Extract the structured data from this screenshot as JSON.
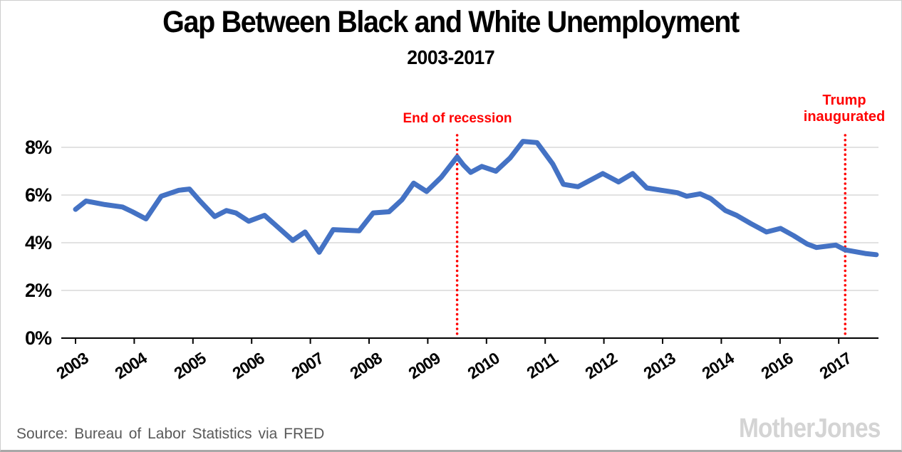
{
  "title": "Gap Between Black and White Unemployment",
  "subtitle": "2003-2017",
  "source_line": "Source: Bureau of Labor Statistics via FRED",
  "logo_text": "MotherJones",
  "colors": {
    "line": "#4472C4",
    "annotation_red": "#FF0000",
    "gridline": "#D9D9D9",
    "axis": "#000000",
    "source_text": "#595959",
    "logo_gray": "#D4D4D4"
  },
  "chart_data": {
    "type": "line",
    "title": "Gap Between Black and White Unemployment",
    "subtitle": "2003-2017",
    "grid": "horizontal only",
    "legend": "none",
    "ylim": [
      0,
      8.6
    ],
    "y_tick_labels": [
      "0%",
      "2%",
      "4%",
      "6%",
      "8%"
    ],
    "y_ticks": [
      0,
      2,
      4,
      6,
      8
    ],
    "x_tick_labels": [
      "2003",
      "2004",
      "2005",
      "2006",
      "2007",
      "2008",
      "2009",
      "2010",
      "2011",
      "2012",
      "2013",
      "2014",
      "2016",
      "2017"
    ],
    "x_axis_note": "evenly spaced year ticks; 2015 label is skipped on the original chart",
    "annotations": [
      {
        "label": "End of recession",
        "x": 2009.5
      },
      {
        "label": "Trump inaugurated",
        "x": 2017.11
      }
    ],
    "series": [
      {
        "name": "Black-white unemployment gap (percentage points)",
        "points": [
          [
            2003.0,
            5.4
          ],
          [
            2003.18,
            5.75
          ],
          [
            2003.5,
            5.6
          ],
          [
            2003.8,
            5.5
          ],
          [
            2003.97,
            5.3
          ],
          [
            2004.2,
            5.0
          ],
          [
            2004.46,
            5.95
          ],
          [
            2004.76,
            6.2
          ],
          [
            2004.94,
            6.25
          ],
          [
            2005.12,
            5.75
          ],
          [
            2005.37,
            5.1
          ],
          [
            2005.57,
            5.35
          ],
          [
            2005.73,
            5.25
          ],
          [
            2005.95,
            4.9
          ],
          [
            2006.22,
            5.15
          ],
          [
            2006.7,
            4.1
          ],
          [
            2006.91,
            4.45
          ],
          [
            2007.15,
            3.6
          ],
          [
            2007.39,
            4.55
          ],
          [
            2007.83,
            4.5
          ],
          [
            2008.07,
            5.25
          ],
          [
            2008.34,
            5.3
          ],
          [
            2008.56,
            5.8
          ],
          [
            2008.76,
            6.5
          ],
          [
            2008.98,
            6.15
          ],
          [
            2009.23,
            6.75
          ],
          [
            2009.5,
            7.6
          ],
          [
            2009.61,
            7.25
          ],
          [
            2009.73,
            6.95
          ],
          [
            2009.92,
            7.2
          ],
          [
            2010.16,
            7.0
          ],
          [
            2010.4,
            7.55
          ],
          [
            2010.62,
            8.25
          ],
          [
            2010.86,
            8.2
          ],
          [
            2011.13,
            7.3
          ],
          [
            2011.31,
            6.45
          ],
          [
            2011.56,
            6.35
          ],
          [
            2011.98,
            6.9
          ],
          [
            2012.25,
            6.55
          ],
          [
            2012.49,
            6.9
          ],
          [
            2012.73,
            6.3
          ],
          [
            2012.98,
            6.2
          ],
          [
            2013.25,
            6.1
          ],
          [
            2013.41,
            5.95
          ],
          [
            2013.64,
            6.05
          ],
          [
            2013.82,
            5.85
          ],
          [
            2014.14,
            5.35
          ],
          [
            2014.52,
            5.15
          ],
          [
            2015.01,
            4.8
          ],
          [
            2015.54,
            4.45
          ],
          [
            2016.01,
            4.6
          ],
          [
            2016.23,
            4.3
          ],
          [
            2016.46,
            3.95
          ],
          [
            2016.62,
            3.8
          ],
          [
            2016.95,
            3.9
          ],
          [
            2017.11,
            3.7
          ],
          [
            2017.45,
            3.55
          ],
          [
            2017.64,
            3.5
          ]
        ]
      }
    ]
  },
  "annotation_labels": {
    "recession": "End of recession",
    "trump_line1": "Trump",
    "trump_line2": "inaugurated"
  }
}
